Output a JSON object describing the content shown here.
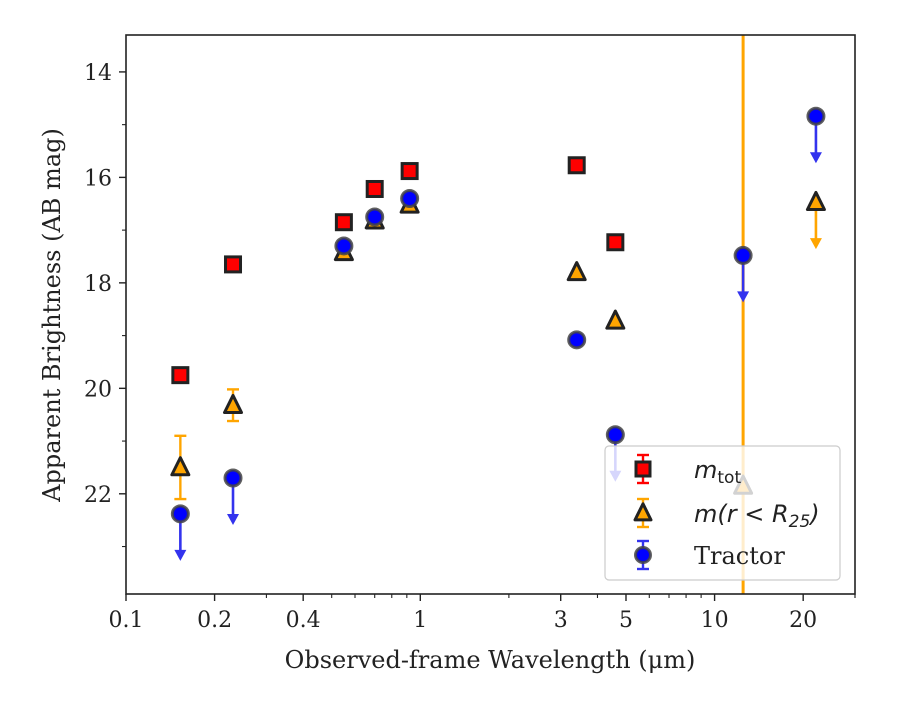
{
  "chart_data": {
    "type": "scatter",
    "title": "",
    "xlabel": "Observed-frame Wavelength (μm)",
    "ylabel": "Apparent Brightness (AB mag)",
    "x_scale": "log",
    "xlim": [
      0.1,
      30
    ],
    "ylim": [
      23.9,
      13.3
    ],
    "y_inverted": true,
    "x_ticks": [
      {
        "value": 0.1,
        "label": "0.1"
      },
      {
        "value": 0.2,
        "label": "0.2"
      },
      {
        "value": 0.4,
        "label": "0.4"
      },
      {
        "value": 1,
        "label": "1"
      },
      {
        "value": 3,
        "label": "3"
      },
      {
        "value": 5,
        "label": "5"
      },
      {
        "value": 10,
        "label": "10"
      },
      {
        "value": 20,
        "label": "20"
      }
    ],
    "y_ticks": [
      {
        "value": 14,
        "label": "14"
      },
      {
        "value": 16,
        "label": "16"
      },
      {
        "value": 18,
        "label": "18"
      },
      {
        "value": 20,
        "label": "20"
      },
      {
        "value": 22,
        "label": "22"
      }
    ],
    "grid": false,
    "legend_position": "bottom-right",
    "vertical_line": {
      "x": 12.5,
      "color": "#FFA500"
    },
    "series": [
      {
        "name": "m_tot",
        "legend_main": "m",
        "legend_sub": "tot",
        "marker": "square",
        "color": "#FF0000",
        "edge_color": "#222222",
        "error_color": "#FF0000",
        "points": [
          {
            "x": 0.153,
            "y": 19.75
          },
          {
            "x": 0.231,
            "y": 17.65
          },
          {
            "x": 0.55,
            "y": 16.85
          },
          {
            "x": 0.7,
            "y": 16.22
          },
          {
            "x": 0.92,
            "y": 15.88
          },
          {
            "x": 3.4,
            "y": 15.77
          },
          {
            "x": 4.6,
            "y": 17.23
          }
        ]
      },
      {
        "name": "m(r < R25)",
        "legend_main": "m(r < R",
        "legend_sub": "25",
        "legend_tail": ")",
        "marker": "triangle",
        "color": "#FFA500",
        "edge_color": "#222222",
        "error_color": "#FFA500",
        "points": [
          {
            "x": 0.153,
            "y": 21.5,
            "yerr": 0.6
          },
          {
            "x": 0.231,
            "y": 20.32,
            "yerr": 0.3
          },
          {
            "x": 0.55,
            "y": 17.42
          },
          {
            "x": 0.7,
            "y": 16.82
          },
          {
            "x": 0.92,
            "y": 16.52
          },
          {
            "x": 3.4,
            "y": 17.8
          },
          {
            "x": 4.6,
            "y": 18.72
          },
          {
            "x": 12.5,
            "y": 21.85
          },
          {
            "x": 22.1,
            "y": 16.47,
            "upper_limit": true
          }
        ]
      },
      {
        "name": "Tractor",
        "legend_main": "Tractor",
        "marker": "circle",
        "color": "#0000FF",
        "edge_color": "#444444",
        "error_color": "#3333EE",
        "points": [
          {
            "x": 0.153,
            "y": 22.38,
            "upper_limit": true
          },
          {
            "x": 0.231,
            "y": 21.7,
            "upper_limit": true
          },
          {
            "x": 0.55,
            "y": 17.3
          },
          {
            "x": 0.7,
            "y": 16.75
          },
          {
            "x": 0.92,
            "y": 16.4
          },
          {
            "x": 3.4,
            "y": 19.08
          },
          {
            "x": 4.6,
            "y": 20.88,
            "upper_limit": true
          },
          {
            "x": 12.5,
            "y": 17.48,
            "upper_limit": true
          },
          {
            "x": 22.1,
            "y": 14.84,
            "upper_limit": true
          }
        ]
      }
    ]
  }
}
